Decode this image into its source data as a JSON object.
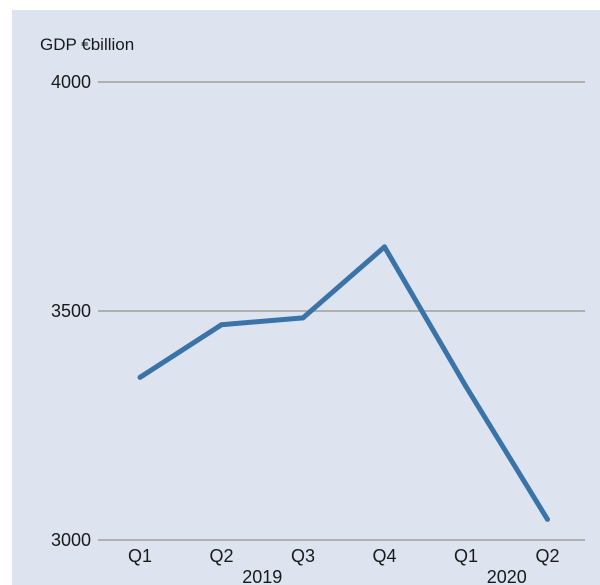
{
  "chart_data": {
    "type": "line",
    "ylabel": "GDP €billion",
    "ylim": [
      3000,
      4000
    ],
    "yticks": [
      3000,
      3500,
      4000
    ],
    "categories": [
      "Q1",
      "Q2",
      "Q3",
      "Q4",
      "Q1",
      "Q2"
    ],
    "years": [
      {
        "label": "2019",
        "span": [
          0,
          3
        ]
      },
      {
        "label": "2020",
        "span": [
          4,
          5
        ]
      }
    ],
    "series": [
      {
        "values": [
          3355,
          3470,
          3485,
          3640,
          3335,
          3045
        ],
        "color": "#3a73a8"
      }
    ],
    "background_color": "#dde3ef",
    "grid_color": "#b0b0b0",
    "grid": true
  }
}
